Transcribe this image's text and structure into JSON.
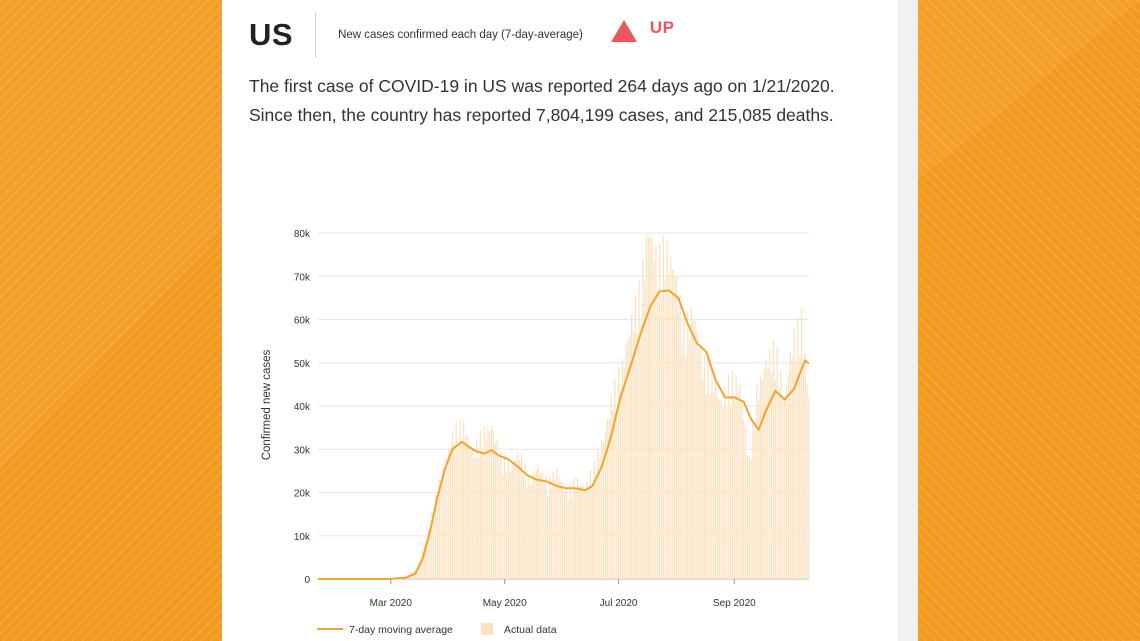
{
  "colors": {
    "background_orange": "#f39a22",
    "line_orange": "#f3a32f",
    "bar_fill": "#fbe3c2",
    "trend_red": "#f0555b"
  },
  "header": {
    "country": "US",
    "subtitle": "New cases confirmed each day (7-day-average)",
    "trend_icon": "triangle-up-icon",
    "trend_label": "UP"
  },
  "description": "The first case of COVID-19 in US was reported 264 days ago on 1/21/2020. Since then, the country has reported 7,804,199 cases, and 215,085 deaths.",
  "chart_data": {
    "type": "bar+line",
    "title": "",
    "ylabel": "Confirmed new cases",
    "xlabel": "",
    "ylim": [
      0,
      80000
    ],
    "yticks": [
      "0",
      "10k",
      "20k",
      "30k",
      "40k",
      "50k",
      "60k",
      "70k",
      "80k"
    ],
    "xticks": [
      "Mar 2020",
      "May 2020",
      "Jul 2020",
      "Sep 2020"
    ],
    "xtick_dates": [
      "2020-03-01",
      "2020-05-01",
      "2020-07-01",
      "2020-09-01"
    ],
    "x_range": [
      "2020-01-22",
      "2020-10-11"
    ],
    "grid": true,
    "legend_position": "bottom-left",
    "series": [
      {
        "name": "7-day moving average",
        "kind": "line",
        "points": [
          [
            "2020-01-22",
            0
          ],
          [
            "2020-02-29",
            0
          ],
          [
            "2020-03-09",
            300
          ],
          [
            "2020-03-14",
            1200
          ],
          [
            "2020-03-18",
            4500
          ],
          [
            "2020-03-22",
            11000
          ],
          [
            "2020-03-26",
            19000
          ],
          [
            "2020-03-30",
            25500
          ],
          [
            "2020-04-03",
            30000
          ],
          [
            "2020-04-08",
            31700
          ],
          [
            "2020-04-12",
            30500
          ],
          [
            "2020-04-16",
            29500
          ],
          [
            "2020-04-20",
            29000
          ],
          [
            "2020-04-24",
            29800
          ],
          [
            "2020-04-28",
            28500
          ],
          [
            "2020-05-03",
            27700
          ],
          [
            "2020-05-08",
            26000
          ],
          [
            "2020-05-13",
            24000
          ],
          [
            "2020-05-18",
            23000
          ],
          [
            "2020-05-24",
            22500
          ],
          [
            "2020-05-29",
            21500
          ],
          [
            "2020-06-03",
            21000
          ],
          [
            "2020-06-08",
            21000
          ],
          [
            "2020-06-13",
            20500
          ],
          [
            "2020-06-17",
            21500
          ],
          [
            "2020-06-22",
            26000
          ],
          [
            "2020-06-27",
            33000
          ],
          [
            "2020-07-02",
            42000
          ],
          [
            "2020-07-08",
            50000
          ],
          [
            "2020-07-13",
            57000
          ],
          [
            "2020-07-18",
            63000
          ],
          [
            "2020-07-23",
            66500
          ],
          [
            "2020-07-28",
            66700
          ],
          [
            "2020-08-02",
            65000
          ],
          [
            "2020-08-07",
            59000
          ],
          [
            "2020-08-12",
            54500
          ],
          [
            "2020-08-17",
            52500
          ],
          [
            "2020-08-22",
            46000
          ],
          [
            "2020-08-27",
            42000
          ],
          [
            "2020-09-01",
            42000
          ],
          [
            "2020-09-06",
            41000
          ],
          [
            "2020-09-10",
            37000
          ],
          [
            "2020-09-14",
            34500
          ],
          [
            "2020-09-18",
            39000
          ],
          [
            "2020-09-23",
            43500
          ],
          [
            "2020-09-28",
            41500
          ],
          [
            "2020-10-03",
            44000
          ],
          [
            "2020-10-07",
            48500
          ],
          [
            "2020-10-09",
            50500
          ],
          [
            "2020-10-11",
            49800
          ]
        ]
      },
      {
        "name": "Actual data",
        "kind": "bar",
        "points": [
          [
            "2020-03-01",
            0
          ],
          [
            "2020-03-10",
            800
          ],
          [
            "2020-03-15",
            2500
          ],
          [
            "2020-03-20",
            9000
          ],
          [
            "2020-03-25",
            18000
          ],
          [
            "2020-03-30",
            25500
          ],
          [
            "2020-04-04",
            33000
          ],
          [
            "2020-04-09",
            34000
          ],
          [
            "2020-04-14",
            28000
          ],
          [
            "2020-04-19",
            32000
          ],
          [
            "2020-04-24",
            34000
          ],
          [
            "2020-04-29",
            27000
          ],
          [
            "2020-05-04",
            25000
          ],
          [
            "2020-05-09",
            28000
          ],
          [
            "2020-05-14",
            22000
          ],
          [
            "2020-05-19",
            25000
          ],
          [
            "2020-05-24",
            21000
          ],
          [
            "2020-05-29",
            24000
          ],
          [
            "2020-06-03",
            19000
          ],
          [
            "2020-06-08",
            22000
          ],
          [
            "2020-06-13",
            20000
          ],
          [
            "2020-06-18",
            25000
          ],
          [
            "2020-06-23",
            31000
          ],
          [
            "2020-06-28",
            41000
          ],
          [
            "2020-07-03",
            47000
          ],
          [
            "2020-07-08",
            57000
          ],
          [
            "2020-07-13",
            64000
          ],
          [
            "2020-07-17",
            77500
          ],
          [
            "2020-07-22",
            70000
          ],
          [
            "2020-07-26",
            73000
          ],
          [
            "2020-07-31",
            68000
          ],
          [
            "2020-08-05",
            55000
          ],
          [
            "2020-08-10",
            59000
          ],
          [
            "2020-08-15",
            48000
          ],
          [
            "2020-08-20",
            45000
          ],
          [
            "2020-08-25",
            39000
          ],
          [
            "2020-08-30",
            44000
          ],
          [
            "2020-09-04",
            43000
          ],
          [
            "2020-09-09",
            26000
          ],
          [
            "2020-09-13",
            41000
          ],
          [
            "2020-09-18",
            48000
          ],
          [
            "2020-09-23",
            51000
          ],
          [
            "2020-09-28",
            40000
          ],
          [
            "2020-10-02",
            52000
          ],
          [
            "2020-10-07",
            57000
          ],
          [
            "2020-10-11",
            40000
          ]
        ]
      }
    ]
  }
}
